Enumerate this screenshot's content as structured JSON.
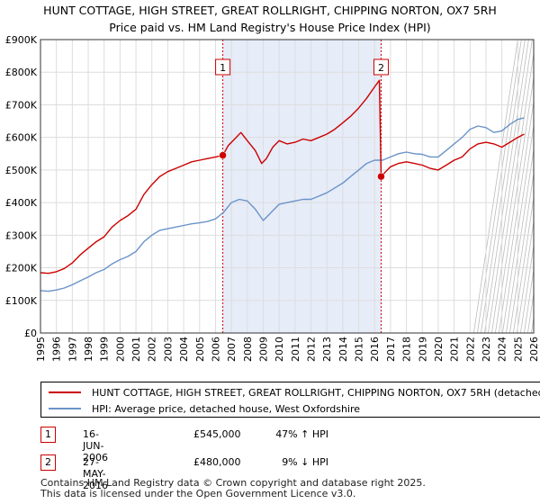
{
  "title_line1": "HUNT COTTAGE, HIGH STREET, GREAT ROLLRIGHT, CHIPPING NORTON, OX7 5RH",
  "title_line2": "Price paid vs. HM Land Registry's House Price Index (HPI)",
  "colors": {
    "property": "#cc0000",
    "hpi": "#6a93c8",
    "shade": "#e6ecf8",
    "grid": "#dddddd",
    "marker_line": "#cc0000"
  },
  "chart_data": {
    "type": "line",
    "xlim": [
      1995,
      2026
    ],
    "ylim": [
      0,
      900000
    ],
    "x_ticks": [
      "1995",
      "1996",
      "1997",
      "1998",
      "1999",
      "2000",
      "2001",
      "2002",
      "2003",
      "2004",
      "2005",
      "2006",
      "2007",
      "2008",
      "2009",
      "2010",
      "2011",
      "2012",
      "2013",
      "2014",
      "2015",
      "2016",
      "2017",
      "2018",
      "2019",
      "2020",
      "2021",
      "2022",
      "2023",
      "2024",
      "2025",
      "2026"
    ],
    "y_ticks": [
      {
        "value": 0,
        "label": "£0"
      },
      {
        "value": 100000,
        "label": "£100K"
      },
      {
        "value": 200000,
        "label": "£200K"
      },
      {
        "value": 300000,
        "label": "£300K"
      },
      {
        "value": 400000,
        "label": "£400K"
      },
      {
        "value": 500000,
        "label": "£500K"
      },
      {
        "value": 600000,
        "label": "£600K"
      },
      {
        "value": 700000,
        "label": "£700K"
      },
      {
        "value": 800000,
        "label": "£800K"
      },
      {
        "value": 900000,
        "label": "£900K"
      }
    ],
    "shaded_range": [
      2006.46,
      2016.41
    ],
    "forecast_from": 2025.0,
    "series": [
      {
        "name": "HUNT COTTAGE, HIGH STREET, GREAT ROLLRIGHT, CHIPPING NORTON, OX7 5RH (detached house)",
        "color": "#cc0000",
        "x": [
          1995.0,
          1995.5,
          1996.0,
          1996.5,
          1997.0,
          1997.5,
          1998.0,
          1998.5,
          1999.0,
          1999.5,
          2000.0,
          2000.5,
          2001.0,
          2001.5,
          2002.0,
          2002.5,
          2003.0,
          2003.5,
          2004.0,
          2004.5,
          2005.0,
          2005.5,
          2006.0,
          2006.46,
          2006.8,
          2007.2,
          2007.6,
          2008.0,
          2008.5,
          2008.9,
          2009.2,
          2009.6,
          2010.0,
          2010.5,
          2011.0,
          2011.5,
          2012.0,
          2012.5,
          2013.0,
          2013.5,
          2014.0,
          2014.5,
          2015.0,
          2015.5,
          2016.0,
          2016.3,
          2016.41,
          2016.7,
          2017.0,
          2017.5,
          2018.0,
          2018.5,
          2019.0,
          2019.5,
          2020.0,
          2020.5,
          2021.0,
          2021.5,
          2022.0,
          2022.5,
          2023.0,
          2023.5,
          2024.0,
          2024.5,
          2025.0,
          2025.4
        ],
        "y": [
          185000,
          183000,
          188000,
          198000,
          215000,
          240000,
          260000,
          280000,
          295000,
          325000,
          345000,
          360000,
          380000,
          425000,
          455000,
          480000,
          495000,
          505000,
          515000,
          525000,
          530000,
          535000,
          540000,
          545000,
          575000,
          595000,
          615000,
          590000,
          560000,
          520000,
          535000,
          570000,
          590000,
          580000,
          585000,
          595000,
          590000,
          600000,
          610000,
          625000,
          645000,
          665000,
          690000,
          720000,
          755000,
          775000,
          480000,
          495000,
          510000,
          520000,
          525000,
          520000,
          515000,
          505000,
          500000,
          515000,
          530000,
          540000,
          565000,
          580000,
          585000,
          580000,
          570000,
          585000,
          600000,
          610000
        ]
      },
      {
        "name": "HPI: Average price, detached house, West Oxfordshire",
        "color": "#6a93c8",
        "x": [
          1995.0,
          1995.5,
          1996.0,
          1996.5,
          1997.0,
          1997.5,
          1998.0,
          1998.5,
          1999.0,
          1999.5,
          2000.0,
          2000.5,
          2001.0,
          2001.5,
          2002.0,
          2002.5,
          2003.0,
          2003.5,
          2004.0,
          2004.5,
          2005.0,
          2005.5,
          2006.0,
          2006.5,
          2007.0,
          2007.5,
          2008.0,
          2008.5,
          2009.0,
          2009.5,
          2010.0,
          2010.5,
          2011.0,
          2011.5,
          2012.0,
          2012.5,
          2013.0,
          2013.5,
          2014.0,
          2014.5,
          2015.0,
          2015.5,
          2016.0,
          2016.5,
          2017.0,
          2017.5,
          2018.0,
          2018.5,
          2019.0,
          2019.5,
          2020.0,
          2020.5,
          2021.0,
          2021.5,
          2022.0,
          2022.5,
          2023.0,
          2023.5,
          2024.0,
          2024.5,
          2025.0,
          2025.4
        ],
        "y": [
          130000,
          128000,
          132000,
          138000,
          148000,
          160000,
          172000,
          185000,
          195000,
          212000,
          225000,
          235000,
          250000,
          280000,
          300000,
          315000,
          320000,
          325000,
          330000,
          335000,
          338000,
          342000,
          350000,
          370000,
          400000,
          410000,
          405000,
          380000,
          345000,
          370000,
          395000,
          400000,
          405000,
          410000,
          410000,
          420000,
          430000,
          445000,
          460000,
          480000,
          500000,
          520000,
          530000,
          530000,
          540000,
          550000,
          555000,
          550000,
          548000,
          540000,
          540000,
          560000,
          580000,
          600000,
          625000,
          635000,
          630000,
          615000,
          620000,
          640000,
          655000,
          660000
        ]
      }
    ],
    "sales": [
      {
        "label": "1",
        "x": 2006.46,
        "y": 545000
      },
      {
        "label": "2",
        "x": 2016.41,
        "y": 480000
      }
    ]
  },
  "legend": {
    "property": "HUNT COTTAGE, HIGH STREET, GREAT ROLLRIGHT, CHIPPING NORTON, OX7 5RH (detached house)",
    "hpi": "HPI: Average price, detached house, West Oxfordshire"
  },
  "sales_table": [
    {
      "label": "1",
      "date": "16-JUN-2006",
      "price": "£545,000",
      "hpi": "47% ↑ HPI"
    },
    {
      "label": "2",
      "date": "27-MAY-2016",
      "price": "£480,000",
      "hpi": "9% ↓ HPI"
    }
  ],
  "footer": {
    "line1": "Contains HM Land Registry data © Crown copyright and database right 2025.",
    "line2": "This data is licensed under the Open Government Licence v3.0."
  }
}
